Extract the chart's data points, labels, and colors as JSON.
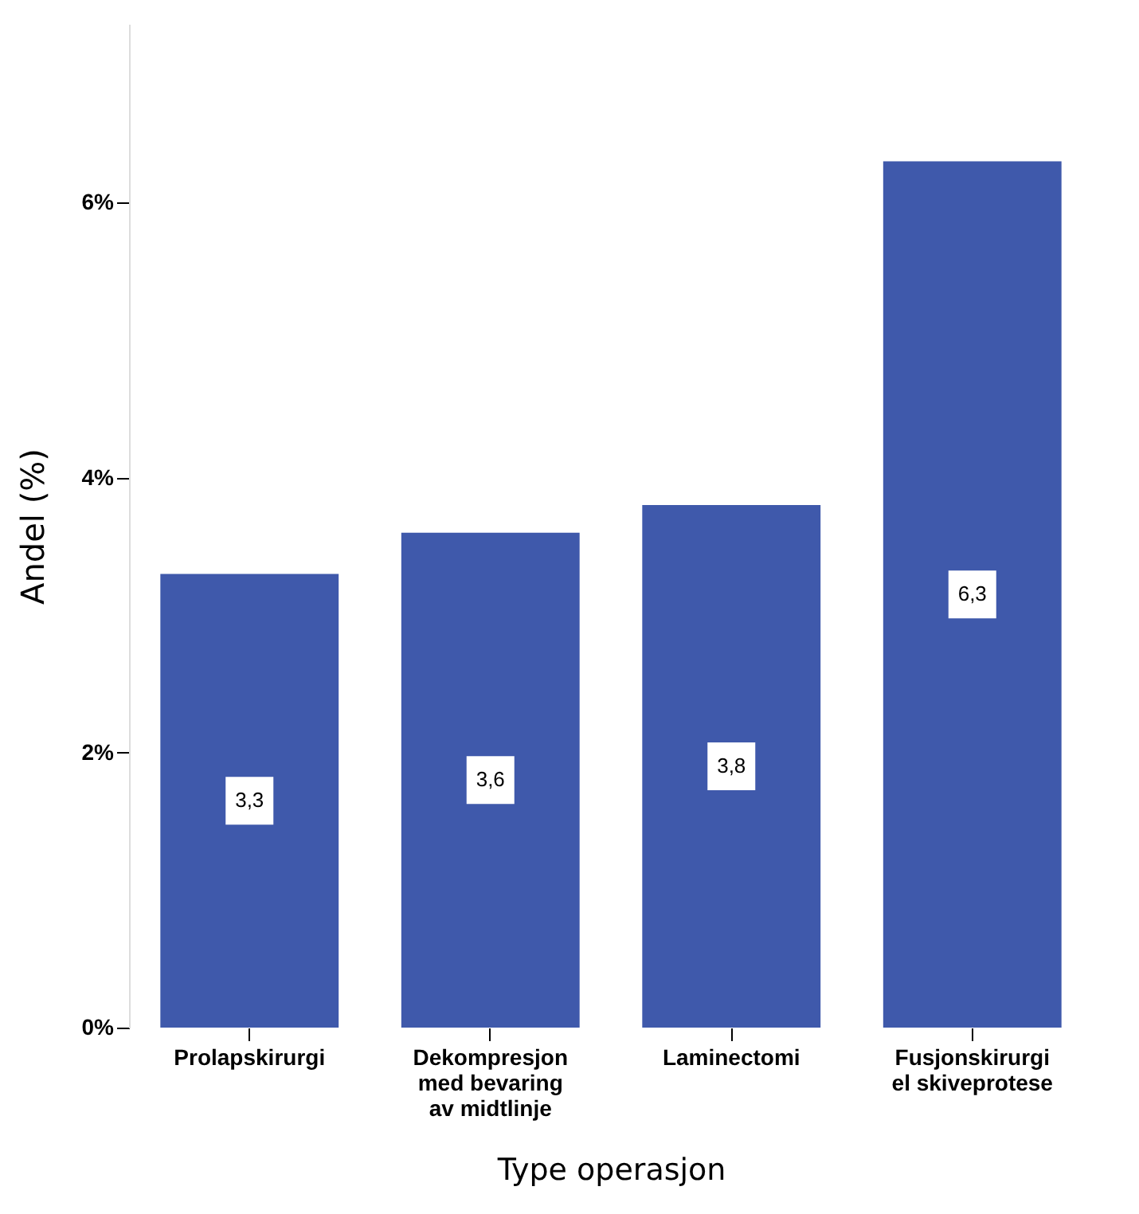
{
  "chart_data": {
    "type": "bar",
    "xlabel": "Type operasjon",
    "ylabel": "Andel (%)",
    "categories": [
      "Prolapskirurgi",
      "Dekompresjon\nmed bevaring\nav midtlinje",
      "Laminectomi",
      "Fusjonskirurgi\nel skiveprotese"
    ],
    "values": [
      3.3,
      3.6,
      3.8,
      6.3
    ],
    "value_labels": [
      "3,3",
      "3,6",
      "3,8",
      "6,3"
    ],
    "color": "#3f59ab",
    "ylim": [
      0,
      7.3
    ],
    "yticks": [
      {
        "value": 0,
        "label": "0%"
      },
      {
        "value": 2,
        "label": "2%"
      },
      {
        "value": 4,
        "label": "4%"
      },
      {
        "value": 6,
        "label": "6%"
      }
    ],
    "grid": false
  }
}
